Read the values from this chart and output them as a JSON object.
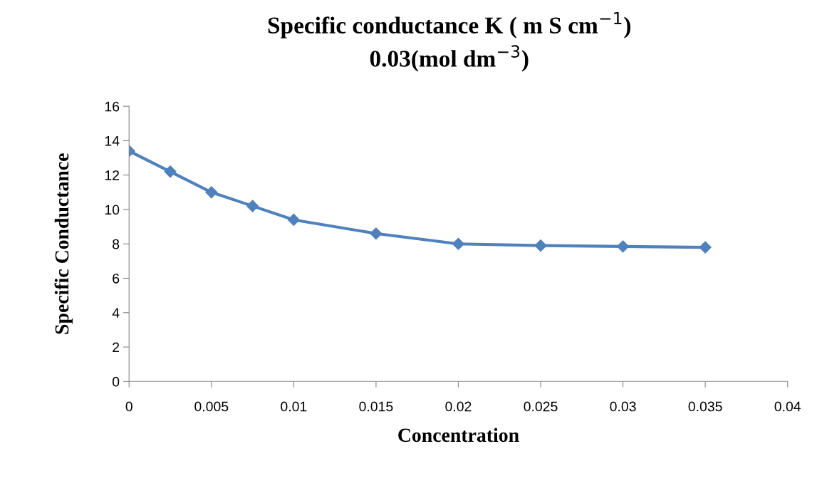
{
  "chart_data": {
    "type": "line",
    "title": "Specific conductance K ( m S cm$^{−1}$)\n0.03(mol dm$^{−3}$)",
    "xlabel": "Concentration",
    "ylabel": "Specific Conductance",
    "x": [
      0,
      0.0025,
      0.005,
      0.0075,
      0.01,
      0.015,
      0.02,
      0.025,
      0.03,
      0.035
    ],
    "series": [
      {
        "color": "#4f81bd",
        "values": [
          13.4,
          12.2,
          11.0,
          10.2,
          9.4,
          8.6,
          8.0,
          7.9,
          7.85,
          7.8
        ]
      }
    ],
    "xlim": [
      0,
      0.04
    ],
    "xticks": [
      0,
      0.005,
      0.01,
      0.015,
      0.02,
      0.025,
      0.03,
      0.035,
      0.04
    ],
    "ylim": [
      0,
      16
    ],
    "yticks": [
      0,
      2,
      4,
      6,
      8,
      10,
      12,
      14,
      16
    ],
    "marker": "diamond",
    "line_style": "solid",
    "grid": false,
    "legend": false
  }
}
